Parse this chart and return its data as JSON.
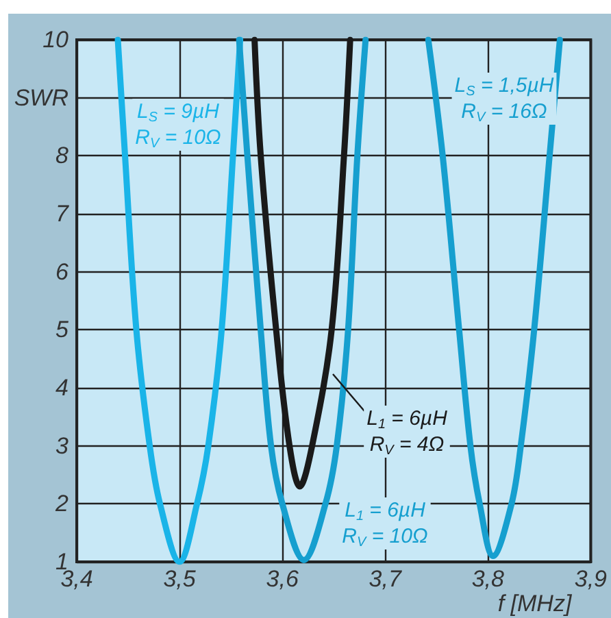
{
  "chart_data": {
    "type": "line",
    "xlabel": "f [MHz]",
    "ylabel": "SWR",
    "xlim": [
      3.4,
      3.9
    ],
    "xticks": [
      {
        "value": 3.4,
        "label": "3,4"
      },
      {
        "value": 3.5,
        "label": "3,5"
      },
      {
        "value": 3.6,
        "label": "3,6"
      },
      {
        "value": 3.7,
        "label": "3,7"
      },
      {
        "value": 3.8,
        "label": "3,8"
      },
      {
        "value": 3.9,
        "label": "3,9"
      }
    ],
    "ylim": [
      1,
      10
    ],
    "yticks": [
      1,
      2,
      3,
      4,
      5,
      6,
      7,
      8,
      {
        "value": 9,
        "label": null
      },
      10
    ],
    "grid": true,
    "marker": "none",
    "line_style": "solid",
    "series": [
      {
        "name": "L$_{S}$ = 9µH\nR$_{V}$ = 10Ω",
        "color": "#1ab4e8",
        "x": [
          3.44,
          3.447,
          3.458,
          3.471,
          3.481,
          3.5,
          3.517,
          3.528,
          3.541,
          3.552,
          3.559
        ],
        "values": [
          10,
          8,
          5,
          3,
          2,
          1,
          2,
          3,
          5,
          8,
          10
        ]
      },
      {
        "name": "L$_{1}$ = 6µH\nR$_{V}$ = 4Ω",
        "color": "#1a1a1a",
        "x": [
          3.573,
          3.579,
          3.594,
          3.607,
          3.617,
          3.629,
          3.648,
          3.66,
          3.666
        ],
        "values": [
          10,
          8,
          5,
          3,
          2.3,
          3,
          5,
          8,
          10
        ]
      },
      {
        "name": "L$_{1}$ = 6µH\nR$_{V}$ = 10Ω",
        "color": "#169fcf",
        "x": [
          3.558,
          3.566,
          3.579,
          3.589,
          3.6,
          3.621,
          3.642,
          3.653,
          3.664,
          3.673,
          3.681
        ],
        "values": [
          10,
          8,
          5,
          3,
          2,
          1.03,
          2,
          3,
          5,
          8,
          10
        ]
      },
      {
        "name": "L$_{S}$ = 1,5µH\nR$_{V}$ = 16Ω",
        "color": "#169fcf",
        "x": [
          3.742,
          3.756,
          3.772,
          3.783,
          3.792,
          3.805,
          3.823,
          3.832,
          3.845,
          3.86,
          3.87
        ],
        "values": [
          10,
          8,
          5,
          3,
          2,
          1.1,
          2,
          3,
          5,
          8,
          10
        ]
      }
    ]
  }
}
